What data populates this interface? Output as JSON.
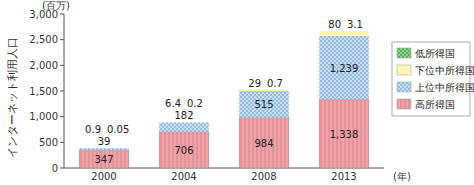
{
  "chart_data": {
    "type": "bar",
    "stacked": true,
    "data_labels": true,
    "grid": false,
    "legend": "right",
    "y_label": "インターネット利用人口",
    "y_unit": "(百万)",
    "x_unit": "(年)",
    "categories": [
      "2000",
      "2004",
      "2008",
      "2013"
    ],
    "ylim": [
      0,
      3000
    ],
    "yticks": [
      0,
      500,
      {
        "value": 1000,
        "label": "1,000"
      },
      {
        "value": 1500,
        "label": "1,500"
      },
      {
        "value": 2000,
        "label": "2,000"
      },
      {
        "value": 2500,
        "label": "2,500"
      },
      {
        "value": 3000,
        "label": "3,000"
      }
    ],
    "series": [
      {
        "name": "高所得国",
        "color": "#f4a0a8",
        "values": [
          347,
          706,
          984,
          1338
        ],
        "value_labels": [
          "347",
          "706",
          "984",
          "1,338"
        ]
      },
      {
        "name": "上位中所得国",
        "color": "#c7def2",
        "values": [
          39,
          182,
          515,
          1239
        ],
        "value_labels": [
          "39",
          "182",
          "515",
          "1,239"
        ]
      },
      {
        "name": "下位中所得国",
        "color": "#fff6b8",
        "values": [
          0.9,
          6.4,
          29,
          80
        ]
      },
      {
        "name": "低所得国",
        "color": "#56b45a",
        "values": [
          0.05,
          0.2,
          0.7,
          3.1
        ]
      }
    ]
  }
}
